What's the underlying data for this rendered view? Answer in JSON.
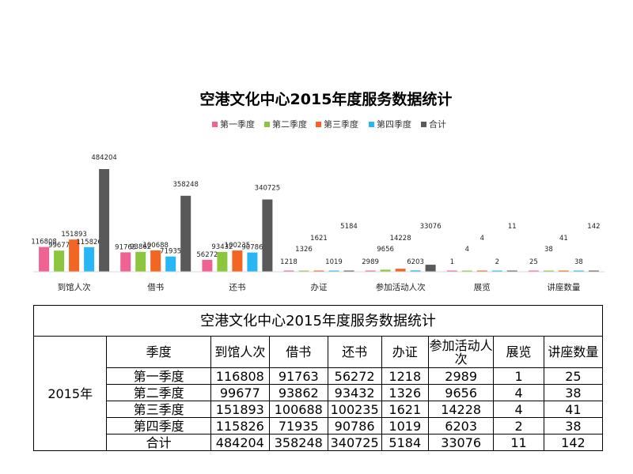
{
  "chart_data": {
    "type": "bar",
    "title": "空港文化中心2015年度服务数据统计",
    "categories": [
      "到馆人次",
      "借书",
      "还书",
      "办证",
      "参加活动人次",
      "展览",
      "讲座数量"
    ],
    "series": [
      {
        "name": "第一季度",
        "color": "#f06292",
        "values": [
          116808,
          91763,
          56272,
          1218,
          2989,
          1,
          25
        ]
      },
      {
        "name": "第二季度",
        "color": "#8cc63f",
        "values": [
          99677,
          93862,
          93432,
          1326,
          9656,
          4,
          38
        ]
      },
      {
        "name": "第三季度",
        "color": "#f26522",
        "values": [
          151893,
          100688,
          100235,
          1621,
          14228,
          4,
          41
        ]
      },
      {
        "name": "第四季度",
        "color": "#29b6f6",
        "values": [
          115826,
          71935,
          90786,
          1019,
          6203,
          2,
          38
        ]
      },
      {
        "name": "合计",
        "color": "#595959",
        "values": [
          484204,
          358248,
          340725,
          5184,
          33076,
          11,
          142
        ]
      }
    ],
    "ylim": [
      0,
      484204
    ],
    "legend": "top",
    "grid": false
  },
  "table": {
    "title": "空港文化中心2015年度服务数据统计",
    "year": "2015年",
    "headers": [
      "季度",
      "到馆人次",
      "借书",
      "还书",
      "办证",
      "参加活动人次",
      "展览",
      "讲座数量"
    ],
    "rows": [
      [
        "第一季度",
        "116808",
        "91763",
        "56272",
        "1218",
        "2989",
        "1",
        "25"
      ],
      [
        "第二季度",
        "99677",
        "93862",
        "93432",
        "1326",
        "9656",
        "4",
        "38"
      ],
      [
        "第三季度",
        "151893",
        "100688",
        "100235",
        "1621",
        "14228",
        "4",
        "41"
      ],
      [
        "第四季度",
        "115826",
        "71935",
        "90786",
        "1019",
        "6203",
        "2",
        "38"
      ],
      [
        "合计",
        "484204",
        "358248",
        "340725",
        "5184",
        "33076",
        "11",
        "142"
      ]
    ]
  }
}
